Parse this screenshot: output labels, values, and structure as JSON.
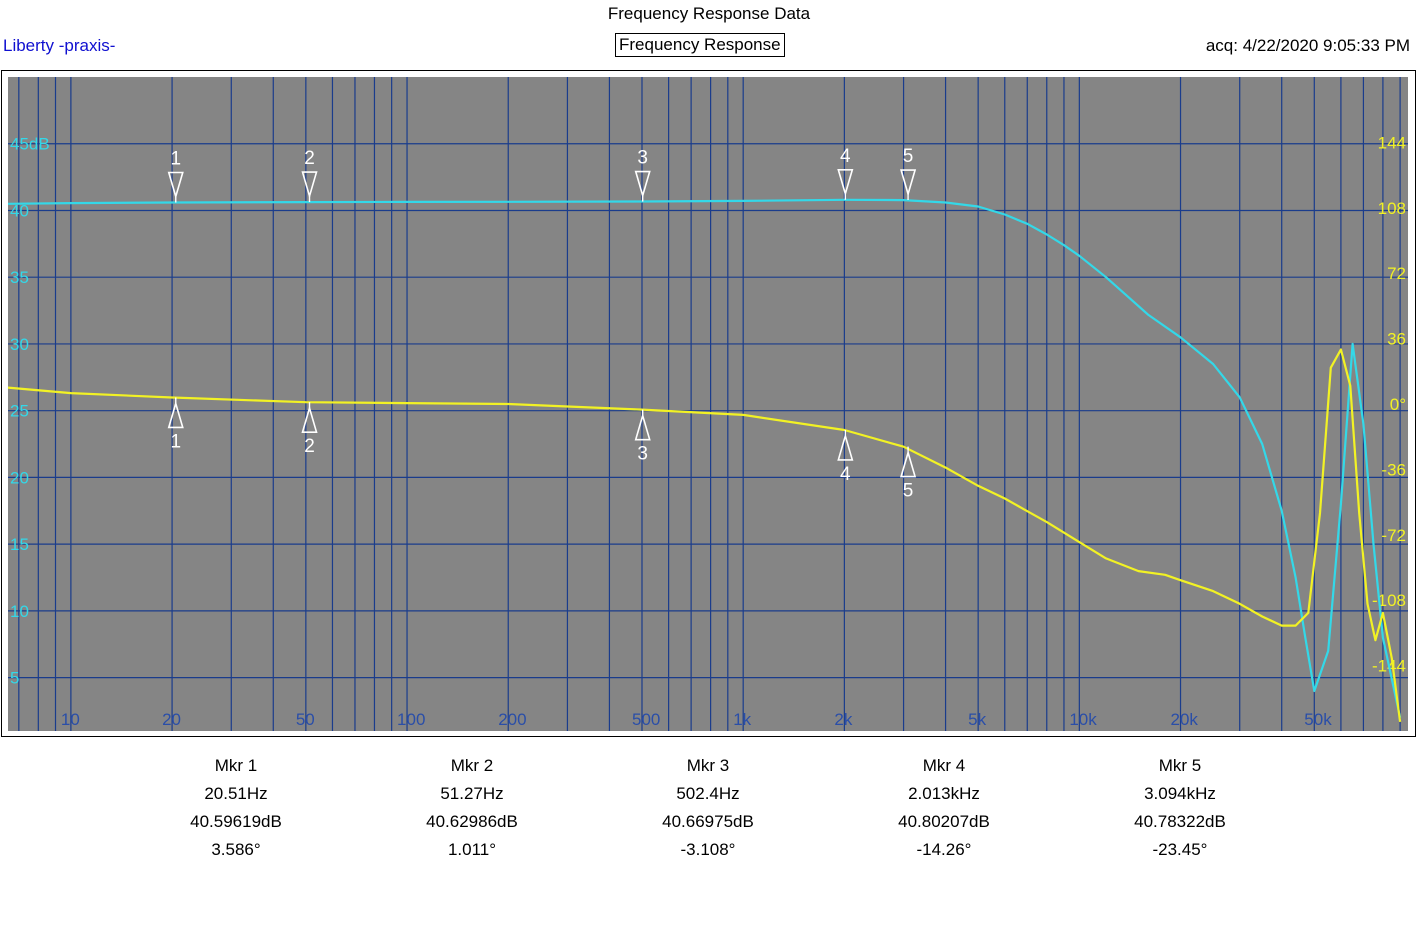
{
  "header": {
    "title": "Frequency Response Data",
    "brand": "Liberty -praxis-",
    "subtitle": "Frequency Response",
    "acq": "acq: 4/22/2020 9:05:33 PM"
  },
  "colors": {
    "plot_bg": "#858585",
    "grid": "#1a3c8c",
    "gain": "#33d8e8",
    "phase": "#f2f224",
    "marker": "#ffffff",
    "freq_label": "#2a4ea8",
    "left_axis": "#33d8e8",
    "right_axis": "#f2f224"
  },
  "chart_data": {
    "type": "line",
    "x_scale": "log",
    "xlim": [
      6.5,
      95000
    ],
    "x_ticks": [
      {
        "value": 10,
        "label": "10"
      },
      {
        "value": 20,
        "label": "20"
      },
      {
        "value": 50,
        "label": "50"
      },
      {
        "value": 100,
        "label": "100"
      },
      {
        "value": 200,
        "label": "200"
      },
      {
        "value": 500,
        "label": "500"
      },
      {
        "value": 1000,
        "label": "1k"
      },
      {
        "value": 2000,
        "label": "2k"
      },
      {
        "value": 5000,
        "label": "5k"
      },
      {
        "value": 10000,
        "label": "10k"
      },
      {
        "value": 20000,
        "label": "20k"
      },
      {
        "value": 50000,
        "label": "50k"
      }
    ],
    "y_left": {
      "unit_label": "45dB",
      "lim": [
        1,
        50
      ],
      "ticks": [
        {
          "value": 45,
          "label": "45dB"
        },
        {
          "value": 40,
          "label": "40"
        },
        {
          "value": 35,
          "label": "35"
        },
        {
          "value": 30,
          "label": "30"
        },
        {
          "value": 25,
          "label": "25"
        },
        {
          "value": 20,
          "label": "20"
        },
        {
          "value": 15,
          "label": "15"
        },
        {
          "value": 10,
          "label": "10"
        },
        {
          "value": 5,
          "label": "5"
        }
      ]
    },
    "y_right": {
      "lim": [
        -180,
        180
      ],
      "ticks": [
        {
          "value": 144,
          "label": "144"
        },
        {
          "value": 108,
          "label": "108"
        },
        {
          "value": 72,
          "label": "72"
        },
        {
          "value": 36,
          "label": "36"
        },
        {
          "value": 0,
          "label": "0°"
        },
        {
          "value": -36,
          "label": "-36"
        },
        {
          "value": -72,
          "label": "-72"
        },
        {
          "value": -108,
          "label": "-108"
        },
        {
          "value": -144,
          "label": "-144"
        }
      ]
    },
    "series": [
      {
        "key": "gain",
        "axis": "left",
        "x": [
          6.5,
          10,
          20,
          50,
          100,
          200,
          500,
          1000,
          2000,
          3000,
          4000,
          5000,
          6000,
          7000,
          8000,
          9000,
          10000,
          12000,
          14000,
          16000,
          20000,
          25000,
          30000,
          35000,
          40000,
          44000,
          47000,
          50000,
          55000,
          60000,
          65000,
          70000,
          75000,
          80000,
          90000
        ],
        "values": [
          40.5,
          40.55,
          40.6,
          40.63,
          40.64,
          40.65,
          40.67,
          40.72,
          40.8,
          40.78,
          40.6,
          40.3,
          39.7,
          39.0,
          38.2,
          37.4,
          36.6,
          35.0,
          33.5,
          32.2,
          30.5,
          28.5,
          26.0,
          22.5,
          17.5,
          12.5,
          8.0,
          4.0,
          7.0,
          18.0,
          30.0,
          24.0,
          15.0,
          8.0,
          2.0
        ]
      },
      {
        "key": "phase",
        "axis": "right",
        "x": [
          6.5,
          10,
          20,
          50,
          100,
          200,
          500,
          1000,
          2000,
          3000,
          4000,
          5000,
          6000,
          7000,
          8000,
          10000,
          12000,
          15000,
          18000,
          20000,
          25000,
          30000,
          35000,
          40000,
          44000,
          48000,
          52000,
          56000,
          60000,
          64000,
          68000,
          72000,
          76000,
          80000,
          85000,
          90000
        ],
        "values": [
          9.0,
          6.0,
          3.6,
          1.0,
          0.5,
          0.0,
          -3.1,
          -6.0,
          -14.3,
          -23.5,
          -35.0,
          -45.0,
          -52.0,
          -59.0,
          -65.0,
          -76.0,
          -85.0,
          -92.0,
          -94.0,
          -97.0,
          -103.0,
          -110.0,
          -117.0,
          -122.0,
          -122.0,
          -115.0,
          -60.0,
          20.0,
          30.0,
          10.0,
          -60.0,
          -110.0,
          -130.0,
          -115.0,
          -140.0,
          -175.0
        ]
      }
    ],
    "marker_labels": [
      "1",
      "2",
      "3",
      "4",
      "5"
    ],
    "gain_marker_freqs": [
      20.51,
      51.27,
      502.4,
      2013,
      3094
    ],
    "gain_marker_values": [
      40.59619,
      40.62986,
      40.66975,
      40.80207,
      40.78322
    ],
    "phase_marker_values": [
      3.586,
      1.011,
      -3.108,
      -14.26,
      -23.45
    ]
  },
  "markers": [
    {
      "name": "Mkr 1",
      "freq": "20.51Hz",
      "gain": "40.59619dB",
      "phase": "3.586°"
    },
    {
      "name": "Mkr 2",
      "freq": "51.27Hz",
      "gain": "40.62986dB",
      "phase": "1.011°"
    },
    {
      "name": "Mkr 3",
      "freq": "502.4Hz",
      "gain": "40.66975dB",
      "phase": "-3.108°"
    },
    {
      "name": "Mkr 4",
      "freq": "2.013kHz",
      "gain": "40.80207dB",
      "phase": "-14.26°"
    },
    {
      "name": "Mkr 5",
      "freq": "3.094kHz",
      "gain": "40.78322dB",
      "phase": "-23.45°"
    }
  ]
}
